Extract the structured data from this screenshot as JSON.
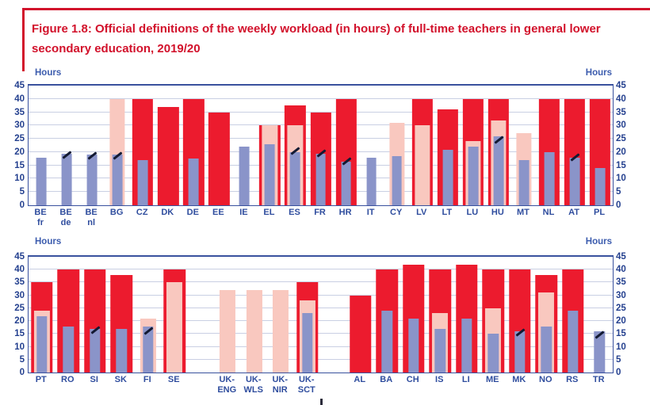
{
  "figure": {
    "title": "Figure 1.8: Official definitions of the weekly workload (in hours) of full-time teachers in general lower secondary education, 2019/20"
  },
  "axis": {
    "label": "Hours",
    "ticks": [
      45,
      40,
      35,
      30,
      25,
      20,
      15,
      10,
      5,
      0
    ],
    "ymax": 45,
    "grid": "on"
  },
  "colors": {
    "red_bar": "#EC1B2E",
    "pink_bar": "#F9C8BF",
    "blue_bar": "#8A94C9",
    "dash_marker": "#131A33",
    "title_red": "#D2112B",
    "label_blue": "#2F4D9E",
    "tick_blue": "#24408F",
    "gridline": "#C9CFE3",
    "plot_border": "#39519E"
  },
  "chart_data": [
    {
      "type": "bar",
      "panel": "top",
      "ylabel": "Hours",
      "ylim": [
        0,
        45
      ],
      "series": [
        "red_bar",
        "pink_bar",
        "blue_bar",
        "dash_marker"
      ],
      "countries": [
        {
          "label": [
            "BE",
            "fr"
          ],
          "red": null,
          "pink": null,
          "blue": 18,
          "dash": null
        },
        {
          "label": [
            "BE",
            "de"
          ],
          "red": null,
          "pink": null,
          "blue": 19.5,
          "dash": 19.5
        },
        {
          "label": [
            "BE",
            "nl"
          ],
          "red": null,
          "pink": null,
          "blue": 19,
          "dash": 19
        },
        {
          "label": [
            "BG"
          ],
          "red": null,
          "pink": 40,
          "blue": 19,
          "dash": 19
        },
        {
          "label": [
            "CZ"
          ],
          "red": 40,
          "pink": null,
          "blue": 17,
          "dash": null
        },
        {
          "label": [
            "DK"
          ],
          "red": 37,
          "pink": null,
          "blue": null,
          "dash": null
        },
        {
          "label": [
            "DE"
          ],
          "red": 40,
          "pink": null,
          "blue": 17.5,
          "dash": null
        },
        {
          "label": [
            "EE"
          ],
          "red": 35,
          "pink": null,
          "blue": null,
          "dash": null
        },
        {
          "label": [
            "IE"
          ],
          "red": null,
          "pink": null,
          "blue": 22,
          "dash": null
        },
        {
          "label": [
            "EL"
          ],
          "red": 30,
          "pink": 30,
          "blue": 23,
          "dash": null
        },
        {
          "label": [
            "ES"
          ],
          "red": 37.5,
          "pink": 30,
          "blue": 20,
          "dash": 21
        },
        {
          "label": [
            "FR"
          ],
          "red": 35,
          "pink": null,
          "blue": 19.5,
          "dash": 20
        },
        {
          "label": [
            "HR"
          ],
          "red": 40,
          "pink": null,
          "blue": 16.5,
          "dash": 17
        },
        {
          "label": [
            "IT"
          ],
          "red": null,
          "pink": null,
          "blue": 18,
          "dash": null
        },
        {
          "label": [
            "CY"
          ],
          "red": null,
          "pink": 31,
          "blue": 18.5,
          "dash": null
        },
        {
          "label": [
            "LV"
          ],
          "red": 40,
          "pink": 30,
          "blue": null,
          "dash": null
        },
        {
          "label": [
            "LT"
          ],
          "red": 36,
          "pink": null,
          "blue": 21,
          "dash": null
        },
        {
          "label": [
            "LU"
          ],
          "red": 40,
          "pink": 24,
          "blue": 22,
          "dash": null
        },
        {
          "label": [
            "HU"
          ],
          "red": 40,
          "pink": 32,
          "blue": 26,
          "dash": 25
        },
        {
          "label": [
            "MT"
          ],
          "red": null,
          "pink": 27,
          "blue": 17,
          "dash": null
        },
        {
          "label": [
            "NL"
          ],
          "red": 40,
          "pink": null,
          "blue": 20,
          "dash": null
        },
        {
          "label": [
            "AT"
          ],
          "red": 40,
          "pink": null,
          "blue": 18,
          "dash": 18.5
        },
        {
          "label": [
            "PL"
          ],
          "red": 40,
          "pink": null,
          "blue": 14,
          "dash": null
        }
      ]
    },
    {
      "type": "bar",
      "panel": "bottom",
      "ylabel": "Hours",
      "ylim": [
        0,
        45
      ],
      "series": [
        "red_bar",
        "pink_bar",
        "blue_bar",
        "dash_marker"
      ],
      "countries": [
        {
          "label": [
            "PT"
          ],
          "red": 35,
          "pink": 24,
          "blue": 22,
          "dash": null
        },
        {
          "label": [
            "RO"
          ],
          "red": 40,
          "pink": null,
          "blue": 18,
          "dash": null
        },
        {
          "label": [
            "SI"
          ],
          "red": 40,
          "pink": null,
          "blue": 17,
          "dash": 17
        },
        {
          "label": [
            "SK"
          ],
          "red": 38,
          "pink": null,
          "blue": 17,
          "dash": null
        },
        {
          "label": [
            "FI"
          ],
          "red": null,
          "pink": 21,
          "blue": 18,
          "dash": 16.5
        },
        {
          "label": [
            "SE"
          ],
          "red": 40,
          "pink": 35,
          "blue": null,
          "dash": null
        },
        {
          "spacer": true
        },
        {
          "label": [
            "UK-",
            "ENG"
          ],
          "red": null,
          "pink": 32,
          "blue": null,
          "dash": null
        },
        {
          "label": [
            "UK-",
            "WLS"
          ],
          "red": null,
          "pink": 32,
          "blue": null,
          "dash": null
        },
        {
          "label": [
            "UK-",
            "NIR"
          ],
          "red": null,
          "pink": 32,
          "blue": null,
          "dash": null
        },
        {
          "label": [
            "UK-",
            "SCT"
          ],
          "red": 35,
          "pink": 28,
          "blue": 23,
          "dash": null
        },
        {
          "spacer": true
        },
        {
          "label": [
            "AL"
          ],
          "red": 30,
          "pink": null,
          "blue": null,
          "dash": null
        },
        {
          "label": [
            "BA"
          ],
          "red": 40,
          "pink": null,
          "blue": 24,
          "dash": null
        },
        {
          "label": [
            "CH"
          ],
          "red": 42,
          "pink": null,
          "blue": 21,
          "dash": null
        },
        {
          "label": [
            "IS"
          ],
          "red": 40,
          "pink": 23,
          "blue": 17,
          "dash": null
        },
        {
          "label": [
            "LI"
          ],
          "red": 42,
          "pink": null,
          "blue": 21,
          "dash": null
        },
        {
          "label": [
            "ME"
          ],
          "red": 40,
          "pink": 25,
          "blue": 15,
          "dash": null
        },
        {
          "label": [
            "MK"
          ],
          "red": 40,
          "pink": null,
          "blue": 16,
          "dash": 16
        },
        {
          "label": [
            "NO"
          ],
          "red": 38,
          "pink": 31,
          "blue": 18,
          "dash": null
        },
        {
          "label": [
            "RS"
          ],
          "red": 40,
          "pink": null,
          "blue": 24,
          "dash": null
        },
        {
          "label": [
            "TR"
          ],
          "red": null,
          "pink": null,
          "blue": 16,
          "dash": 15
        }
      ]
    }
  ]
}
